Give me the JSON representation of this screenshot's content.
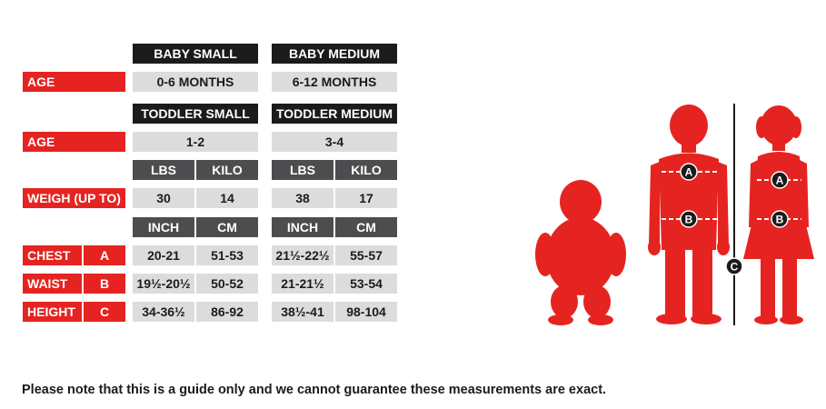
{
  "sizes": {
    "baby_small": "BABY SMALL",
    "baby_medium": "BABY MEDIUM",
    "toddler_small": "TODDLER SMALL",
    "toddler_medium": "TODDLER MEDIUM"
  },
  "labels": {
    "age": "AGE",
    "weigh": "WEIGH (UP TO)",
    "chest": "CHEST",
    "waist": "WAIST",
    "height": "HEIGHT",
    "a": "A",
    "b": "B",
    "c": "C"
  },
  "units": {
    "lbs": "LBS",
    "kilo": "KILO",
    "inch": "INCH",
    "cm": "CM"
  },
  "values": {
    "baby_small_age": "0-6 MONTHS",
    "baby_medium_age": "6-12 MONTHS",
    "toddler_small_age": "1-2",
    "toddler_medium_age": "3-4",
    "weigh": [
      "30",
      "14",
      "38",
      "17"
    ],
    "chest": [
      "20-21",
      "51-53",
      "21½-22½",
      "55-57"
    ],
    "waist": [
      "19½-20½",
      "50-52",
      "21-21½",
      "53-54"
    ],
    "height": [
      "34-36½",
      "86-92",
      "38½-41",
      "98-104"
    ]
  },
  "figure": {
    "marker_a": "A",
    "marker_b": "B",
    "marker_c": "C"
  },
  "note": "Please note that this is a guide only and we cannot guarantee these measurements are exact.",
  "colors": {
    "red": "#e52421",
    "black": "#1b1b1b",
    "dark_grey": "#4d4d4f",
    "light_grey": "#dcdcdc"
  }
}
